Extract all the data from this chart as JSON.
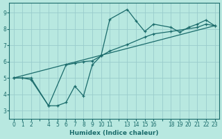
{
  "xlabel": "Humidex (Indice chaleur)",
  "bg_color": "#b8e8e0",
  "grid_color": "#99cccc",
  "line_color": "#1a6b6b",
  "xlim": [
    -0.5,
    23.5
  ],
  "ylim": [
    2.5,
    9.6
  ],
  "xticks_all": [
    0,
    1,
    2,
    3,
    4,
    5,
    6,
    7,
    8,
    9,
    10,
    11,
    12,
    13,
    14,
    15,
    16,
    17,
    18,
    19,
    20,
    21,
    22,
    23
  ],
  "xtick_labels_show": [
    0,
    1,
    2,
    4,
    5,
    6,
    7,
    8,
    9,
    10,
    11,
    13,
    14,
    15,
    16,
    18,
    19,
    20,
    21,
    22,
    23
  ],
  "yticks": [
    3,
    4,
    5,
    6,
    7,
    8,
    9
  ],
  "line1_x": [
    0,
    1,
    2,
    4,
    5,
    6,
    7,
    8,
    9,
    10,
    11,
    13,
    14,
    15,
    16,
    18,
    19,
    20,
    21,
    22,
    23
  ],
  "line1_y": [
    5.0,
    5.0,
    4.9,
    3.3,
    3.3,
    3.5,
    4.5,
    3.9,
    5.8,
    6.35,
    8.6,
    9.2,
    8.5,
    7.85,
    8.3,
    8.1,
    7.8,
    8.1,
    8.3,
    8.55,
    8.2
  ],
  "line2_x": [
    0,
    2,
    4,
    6,
    7,
    8,
    9,
    10,
    11,
    13,
    15,
    16,
    18,
    21,
    22,
    23
  ],
  "line2_y": [
    5.0,
    5.0,
    3.3,
    5.8,
    5.9,
    6.0,
    6.05,
    6.35,
    6.65,
    7.05,
    7.5,
    7.7,
    7.85,
    8.1,
    8.3,
    8.2
  ],
  "line3_x": [
    0,
    23
  ],
  "line3_y": [
    5.0,
    8.2
  ]
}
